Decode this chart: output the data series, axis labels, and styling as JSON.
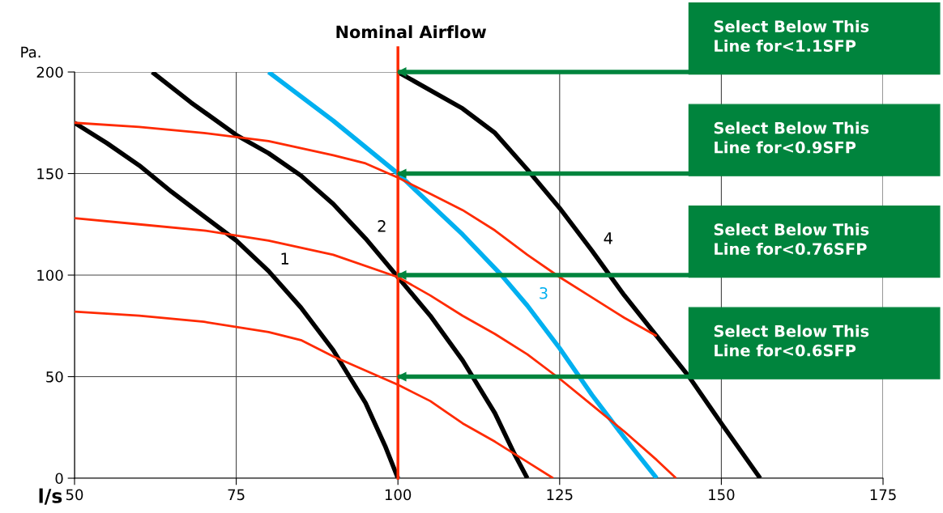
{
  "chart_data": {
    "type": "line",
    "xlabel": "l/s",
    "ylabel": "Pa.",
    "xlim": [
      50,
      175
    ],
    "xticks": [
      50,
      75,
      100,
      125,
      150,
      175
    ],
    "ylim": [
      0,
      200
    ],
    "yticks": [
      0,
      50,
      100,
      150,
      200
    ],
    "grid": true,
    "marker": "none",
    "line_style": "solid",
    "series": [
      {
        "name": "1",
        "color": "#000000",
        "x": [
          50,
          55,
          60,
          65,
          70,
          75,
          80,
          85,
          90,
          95,
          98,
          100
        ],
        "values": [
          175,
          165,
          154,
          141,
          129,
          117,
          102,
          84,
          63,
          37,
          16,
          0
        ]
      },
      {
        "name": "2",
        "color": "#000000",
        "x": [
          62,
          68,
          75,
          80,
          85,
          90,
          95,
          100,
          105,
          110,
          115,
          118,
          120
        ],
        "values": [
          200,
          185,
          169,
          160,
          149,
          135,
          118,
          99,
          80,
          58,
          32,
          12,
          0
        ]
      },
      {
        "name": "3",
        "color": "#00b0f0",
        "x": [
          80,
          90,
          100,
          110,
          116,
          120,
          125,
          130,
          135,
          140
        ],
        "values": [
          200,
          176,
          150,
          120,
          100,
          85,
          64,
          41,
          20,
          0
        ]
      },
      {
        "name": "4",
        "color": "#000000",
        "x": [
          100,
          110,
          115,
          120,
          125,
          130,
          135,
          140,
          145,
          150,
          156
        ],
        "values": [
          200,
          182,
          170,
          152,
          133,
          112,
          90,
          70,
          50,
          27,
          0
        ]
      },
      {
        "color": "#ff2a00",
        "x": [
          50,
          60,
          70,
          80,
          90,
          95,
          100,
          105,
          110,
          115,
          120,
          125,
          130,
          135,
          140
        ],
        "values": [
          175,
          173,
          170,
          166,
          159,
          155,
          148,
          140,
          132,
          122,
          110,
          99,
          89,
          79,
          70
        ]
      },
      {
        "color": "#ff2a00",
        "x": [
          50,
          60,
          70,
          80,
          90,
          100,
          105,
          110,
          115,
          120,
          125,
          130,
          135,
          140,
          143
        ],
        "values": [
          128,
          125,
          122,
          117,
          110,
          99,
          90,
          80,
          71,
          61,
          49,
          36,
          23,
          9,
          0
        ]
      },
      {
        "color": "#ff2a00",
        "x": [
          50,
          60,
          70,
          80,
          85,
          90,
          95,
          100,
          105,
          110,
          115,
          120,
          124
        ],
        "values": [
          82,
          80,
          77,
          72,
          68,
          60,
          53,
          46,
          38,
          27,
          18,
          8,
          0
        ]
      }
    ],
    "ref_lines": [
      {
        "axis": "x",
        "value": 100,
        "label": "Nominal Airflow",
        "color": "#ff2a00"
      },
      {
        "axis": "y",
        "value": 200,
        "label": "Select Below This\nLine for<1.1SFP",
        "color": "#00843d"
      },
      {
        "axis": "y",
        "value": 150,
        "label": "Select Below This\nLine for<0.9SFP",
        "color": "#00843d"
      },
      {
        "axis": "y",
        "value": 100,
        "label": "Select Below This\nLine for<0.76SFP",
        "color": "#00843d"
      },
      {
        "axis": "y",
        "value": 50,
        "label": "Select Below This\nLine for<0.6SFP",
        "color": "#00843d"
      }
    ]
  }
}
